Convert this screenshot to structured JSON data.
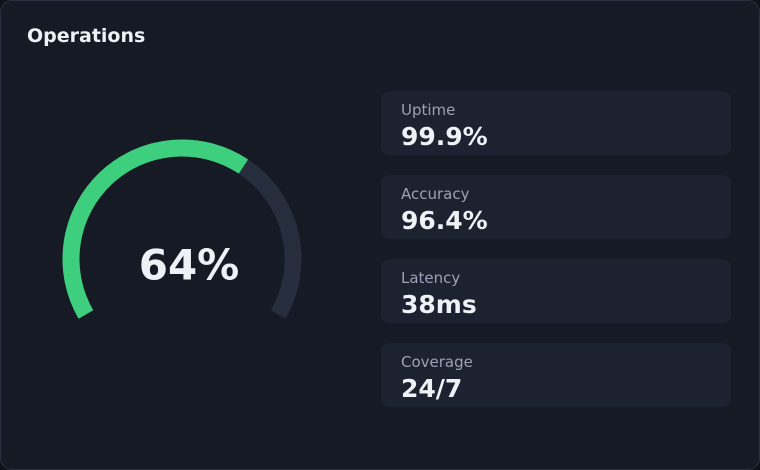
{
  "header": {
    "title": "Operations"
  },
  "gauge": {
    "value": 64,
    "value_label": "64%",
    "color": "#3ecf7e",
    "track_color": "#262d3d"
  },
  "stats": [
    {
      "label": "Uptime",
      "value": "99.9%"
    },
    {
      "label": "Accuracy",
      "value": "96.4%"
    },
    {
      "label": "Latency",
      "value": "38ms"
    },
    {
      "label": "Coverage",
      "value": "24/7"
    }
  ]
}
